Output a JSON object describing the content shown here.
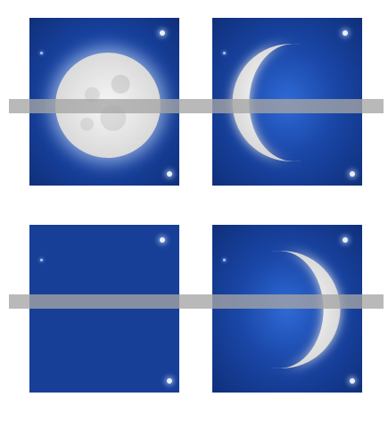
{
  "scene": {
    "colors": {
      "sky_dark": "#0f2f7a",
      "sky_glow": "#2f6ad6",
      "moon_light": "#f2f2f2",
      "band_gray": "#a5a5a5"
    },
    "panels": [
      {
        "phase_icon": "full-moon-icon"
      },
      {
        "phase_icon": "waxing-crescent-icon"
      },
      {
        "phase_icon": "new-moon-icon"
      },
      {
        "phase_icon": "waning-crescent-icon"
      }
    ]
  }
}
